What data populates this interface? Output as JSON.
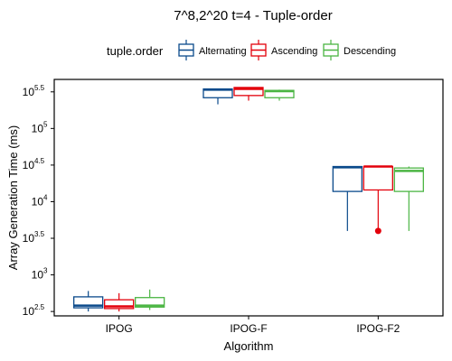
{
  "chart_data": {
    "type": "boxplot",
    "title": "7^8,2^20 t=4 - Tuple-order",
    "xlabel": "Algorithm",
    "ylabel": "Array Generation Time (ms)",
    "y_scale": "log10",
    "ylim_log10": [
      2.44,
      5.67
    ],
    "categories": [
      "IPOG",
      "IPOG-F",
      "IPOG-F2"
    ],
    "legend": {
      "title": "tuple.order",
      "position": "top",
      "entries": [
        "Alternating",
        "Ascending",
        "Descending"
      ]
    },
    "y_ticks": [
      {
        "value_log10": 2.5,
        "base": "10",
        "exp": "2.5"
      },
      {
        "value_log10": 3.0,
        "base": "10",
        "exp": "3"
      },
      {
        "value_log10": 3.5,
        "base": "10",
        "exp": "3.5"
      },
      {
        "value_log10": 4.0,
        "base": "10",
        "exp": "4"
      },
      {
        "value_log10": 4.5,
        "base": "10",
        "exp": "4.5"
      },
      {
        "value_log10": 5.0,
        "base": "10",
        "exp": "5"
      },
      {
        "value_log10": 5.5,
        "base": "10",
        "exp": "5.5"
      }
    ],
    "series": [
      {
        "name": "Alternating",
        "color": "#0b4a8b",
        "boxes_log10": [
          {
            "whisker_low": 2.5,
            "q1": 2.55,
            "median": 2.58,
            "q3": 2.7,
            "whisker_high": 2.78,
            "outliers": []
          },
          {
            "whisker_low": 5.33,
            "q1": 5.42,
            "median": 5.53,
            "q3": 5.54,
            "whisker_high": 5.54,
            "outliers": []
          },
          {
            "whisker_low": 3.6,
            "q1": 4.14,
            "median": 4.47,
            "q3": 4.48,
            "whisker_high": 4.48,
            "outliers": []
          }
        ]
      },
      {
        "name": "Ascending",
        "color": "#e3000b",
        "boxes_log10": [
          {
            "whisker_low": 2.5,
            "q1": 2.54,
            "median": 2.57,
            "q3": 2.66,
            "whisker_high": 2.75,
            "outliers": []
          },
          {
            "whisker_low": 5.38,
            "q1": 5.45,
            "median": 5.54,
            "q3": 5.56,
            "whisker_high": 5.56,
            "outliers": []
          },
          {
            "whisker_low": 3.6,
            "q1": 4.16,
            "median": 4.48,
            "q3": 4.48,
            "whisker_high": 4.48,
            "outliers": [
              3.6
            ]
          }
        ]
      },
      {
        "name": "Descending",
        "color": "#4bb543",
        "boxes_log10": [
          {
            "whisker_low": 2.52,
            "q1": 2.56,
            "median": 2.58,
            "q3": 2.69,
            "whisker_high": 2.8,
            "outliers": []
          },
          {
            "whisker_low": 5.38,
            "q1": 5.42,
            "median": 5.51,
            "q3": 5.52,
            "whisker_high": 5.53,
            "outliers": []
          },
          {
            "whisker_low": 3.6,
            "q1": 4.14,
            "median": 4.42,
            "q3": 4.46,
            "whisker_high": 4.48,
            "outliers": []
          }
        ]
      }
    ]
  }
}
